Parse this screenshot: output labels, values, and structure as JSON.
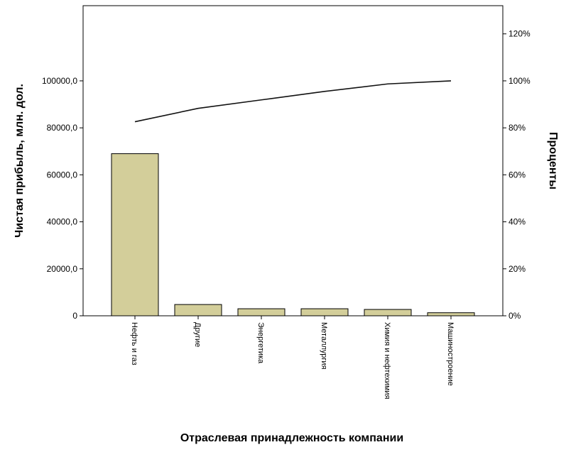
{
  "chart_data": {
    "type": "bar",
    "xlabel": "Отраслевая принадлежность компании",
    "ylabel": "Чистая прибыль, млн. дол.",
    "y2label": "Проценты",
    "categories": [
      "Нефть и газ",
      "Другие",
      "Энергетика",
      "Металлургия",
      "Химия и нефтехимия",
      "Машиностроение"
    ],
    "values": [
      69000,
      4800,
      3000,
      3000,
      2700,
      1300
    ],
    "cumulative_percent": [
      82.6,
      88.3,
      91.9,
      95.5,
      98.7,
      100.0
    ],
    "ylim": [
      0,
      132000
    ],
    "y2lim": [
      0,
      132
    ],
    "yticks": [
      0,
      20000,
      40000,
      60000,
      80000,
      100000
    ],
    "ytick_labels": [
      "0",
      "20000,0",
      "40000,0",
      "60000,0",
      "80000,0",
      "100000,0"
    ],
    "y2ticks": [
      0,
      20,
      40,
      60,
      80,
      100,
      120
    ],
    "y2tick_labels": [
      "0%",
      "20%",
      "40%",
      "60%",
      "80%",
      "100%",
      "120%"
    ],
    "bar_color": "#d3ce9a",
    "line_color": "#111111",
    "grid": false,
    "legend": "none"
  }
}
